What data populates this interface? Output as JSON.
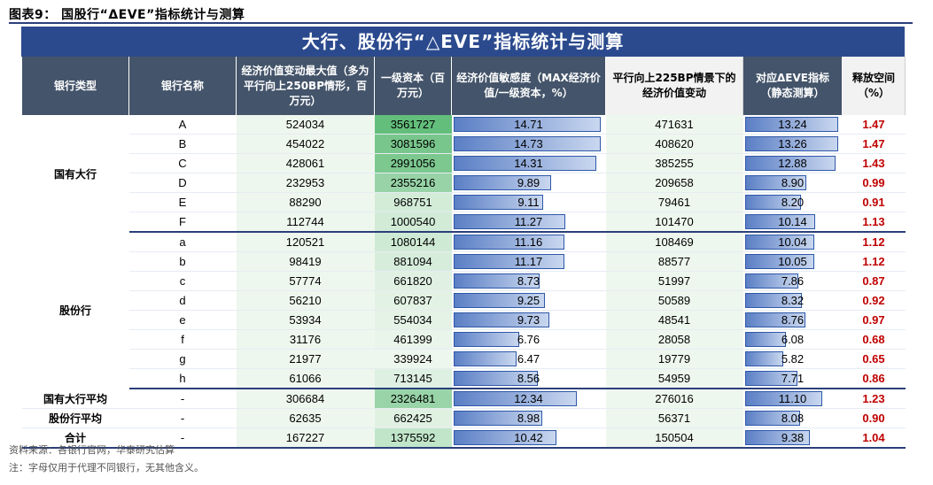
{
  "figure_title": "图表9：  国股行“ΔEVE”指标统计与测算",
  "banner_title": "大行、股份行“△EVE”指标统计与测算",
  "headers": [
    "银行类型",
    "银行名称",
    "经济价值变动最大值（多为平行向上250BP情形，百万元）",
    "一级资本（百万元）",
    "经济价值敏感度（MAX经济价值/一级资本，%）",
    "平行向上225BP情景下的经济价值变动",
    "对应ΔEVE指标（静态测算）",
    "释放空间（%）"
  ],
  "groups": [
    {
      "label": "国有大行",
      "rows": [
        {
          "name": "A",
          "max": "524034",
          "cap": "3561727",
          "sens": "14.71",
          "pv225": "471631",
          "eve": "13.24",
          "rel": "1.47"
        },
        {
          "name": "B",
          "max": "454022",
          "cap": "3081596",
          "sens": "14.73",
          "pv225": "408620",
          "eve": "13.26",
          "rel": "1.47"
        },
        {
          "name": "C",
          "max": "428061",
          "cap": "2991056",
          "sens": "14.31",
          "pv225": "385255",
          "eve": "12.88",
          "rel": "1.43"
        },
        {
          "name": "D",
          "max": "232953",
          "cap": "2355216",
          "sens": "9.89",
          "pv225": "209658",
          "eve": "8.90",
          "rel": "0.99"
        },
        {
          "name": "E",
          "max": "88290",
          "cap": "968751",
          "sens": "9.11",
          "pv225": "79461",
          "eve": "8.20",
          "rel": "0.91"
        },
        {
          "name": "F",
          "max": "112744",
          "cap": "1000540",
          "sens": "11.27",
          "pv225": "101470",
          "eve": "10.14",
          "rel": "1.13"
        }
      ]
    },
    {
      "label": "股份行",
      "rows": [
        {
          "name": "a",
          "max": "120521",
          "cap": "1080144",
          "sens": "11.16",
          "pv225": "108469",
          "eve": "10.04",
          "rel": "1.12"
        },
        {
          "name": "b",
          "max": "98419",
          "cap": "881094",
          "sens": "11.17",
          "pv225": "88577",
          "eve": "10.05",
          "rel": "1.12"
        },
        {
          "name": "c",
          "max": "57774",
          "cap": "661820",
          "sens": "8.73",
          "pv225": "51997",
          "eve": "7.86",
          "rel": "0.87"
        },
        {
          "name": "d",
          "max": "56210",
          "cap": "607837",
          "sens": "9.25",
          "pv225": "50589",
          "eve": "8.32",
          "rel": "0.92"
        },
        {
          "name": "e",
          "max": "53934",
          "cap": "554034",
          "sens": "9.73",
          "pv225": "48541",
          "eve": "8.76",
          "rel": "0.97"
        },
        {
          "name": "f",
          "max": "31176",
          "cap": "461399",
          "sens": "6.76",
          "pv225": "28058",
          "eve": "6.08",
          "rel": "0.68"
        },
        {
          "name": "g",
          "max": "21977",
          "cap": "339924",
          "sens": "6.47",
          "pv225": "19779",
          "eve": "5.82",
          "rel": "0.65"
        },
        {
          "name": "h",
          "max": "61066",
          "cap": "713145",
          "sens": "8.56",
          "pv225": "54959",
          "eve": "7.71",
          "rel": "0.86"
        }
      ]
    }
  ],
  "summary": [
    {
      "label": "国有大行平均",
      "name": "-",
      "max": "306684",
      "cap": "2326481",
      "sens": "12.34",
      "pv225": "276016",
      "eve": "11.10",
      "rel": "1.23"
    },
    {
      "label": "股份行平均",
      "name": "-",
      "max": "62635",
      "cap": "662425",
      "sens": "8.98",
      "pv225": "56371",
      "eve": "8.08",
      "rel": "0.90"
    },
    {
      "label": "合计",
      "name": "-",
      "max": "167227",
      "cap": "1375592",
      "sens": "10.42",
      "pv225": "150504",
      "eve": "9.38",
      "rel": "1.04"
    }
  ],
  "source_note": "资料来源：各银行官网，华泰研究估算",
  "footnote": "注：字母仅用于代理不同银行，无其他含义。",
  "colors": {
    "header_bg": "#44546a",
    "banner_bg": "#2b4a8e",
    "release_text": "#c00000",
    "bar_fill": "#5b7fc5",
    "capital_green_max": "#63be7b",
    "capital_green_min": "#eef7ee"
  }
}
